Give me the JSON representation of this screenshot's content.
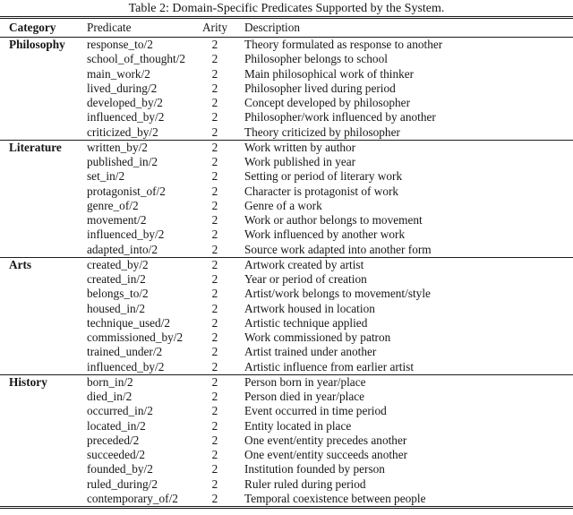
{
  "caption": "Table 2: Domain-Specific Predicates Supported by the System.",
  "columns": [
    "Category",
    "Predicate",
    "Arity",
    "Description"
  ],
  "sections": [
    {
      "category": "Philosophy",
      "rows": [
        {
          "predicate": "response_to/2",
          "arity": "2",
          "description": "Theory formulated as response to another"
        },
        {
          "predicate": "school_of_thought/2",
          "arity": "2",
          "description": "Philosopher belongs to school"
        },
        {
          "predicate": "main_work/2",
          "arity": "2",
          "description": "Main philosophical work of thinker"
        },
        {
          "predicate": "lived_during/2",
          "arity": "2",
          "description": "Philosopher lived during period"
        },
        {
          "predicate": "developed_by/2",
          "arity": "2",
          "description": "Concept developed by philosopher"
        },
        {
          "predicate": "influenced_by/2",
          "arity": "2",
          "description": "Philosopher/work influenced by another"
        },
        {
          "predicate": "criticized_by/2",
          "arity": "2",
          "description": "Theory criticized by philosopher"
        }
      ]
    },
    {
      "category": "Literature",
      "rows": [
        {
          "predicate": "written_by/2",
          "arity": "2",
          "description": "Work written by author"
        },
        {
          "predicate": "published_in/2",
          "arity": "2",
          "description": "Work published in year"
        },
        {
          "predicate": "set_in/2",
          "arity": "2",
          "description": "Setting or period of literary work"
        },
        {
          "predicate": "protagonist_of/2",
          "arity": "2",
          "description": "Character is protagonist of work"
        },
        {
          "predicate": "genre_of/2",
          "arity": "2",
          "description": "Genre of a work"
        },
        {
          "predicate": "movement/2",
          "arity": "2",
          "description": "Work or author belongs to movement"
        },
        {
          "predicate": "influenced_by/2",
          "arity": "2",
          "description": "Work influenced by another work"
        },
        {
          "predicate": "adapted_into/2",
          "arity": "2",
          "description": "Source work adapted into another form"
        }
      ]
    },
    {
      "category": "Arts",
      "rows": [
        {
          "predicate": "created_by/2",
          "arity": "2",
          "description": "Artwork created by artist"
        },
        {
          "predicate": "created_in/2",
          "arity": "2",
          "description": "Year or period of creation"
        },
        {
          "predicate": "belongs_to/2",
          "arity": "2",
          "description": "Artist/work belongs to movement/style"
        },
        {
          "predicate": "housed_in/2",
          "arity": "2",
          "description": "Artwork housed in location"
        },
        {
          "predicate": "technique_used/2",
          "arity": "2",
          "description": "Artistic technique applied"
        },
        {
          "predicate": "commissioned_by/2",
          "arity": "2",
          "description": "Work commissioned by patron"
        },
        {
          "predicate": "trained_under/2",
          "arity": "2",
          "description": "Artist trained under another"
        },
        {
          "predicate": "influenced_by/2",
          "arity": "2",
          "description": "Artistic influence from earlier artist"
        }
      ]
    },
    {
      "category": "History",
      "rows": [
        {
          "predicate": "born_in/2",
          "arity": "2",
          "description": "Person born in year/place"
        },
        {
          "predicate": "died_in/2",
          "arity": "2",
          "description": "Person died in year/place"
        },
        {
          "predicate": "occurred_in/2",
          "arity": "2",
          "description": "Event occurred in time period"
        },
        {
          "predicate": "located_in/2",
          "arity": "2",
          "description": "Entity located in place"
        },
        {
          "predicate": "preceded/2",
          "arity": "2",
          "description": "One event/entity precedes another"
        },
        {
          "predicate": "succeeded/2",
          "arity": "2",
          "description": "One event/entity succeeds another"
        },
        {
          "predicate": "founded_by/2",
          "arity": "2",
          "description": "Institution founded by person"
        },
        {
          "predicate": "ruled_during/2",
          "arity": "2",
          "description": "Ruler ruled during period"
        },
        {
          "predicate": "contemporary_of/2",
          "arity": "2",
          "description": "Temporal coexistence between people"
        }
      ]
    }
  ]
}
